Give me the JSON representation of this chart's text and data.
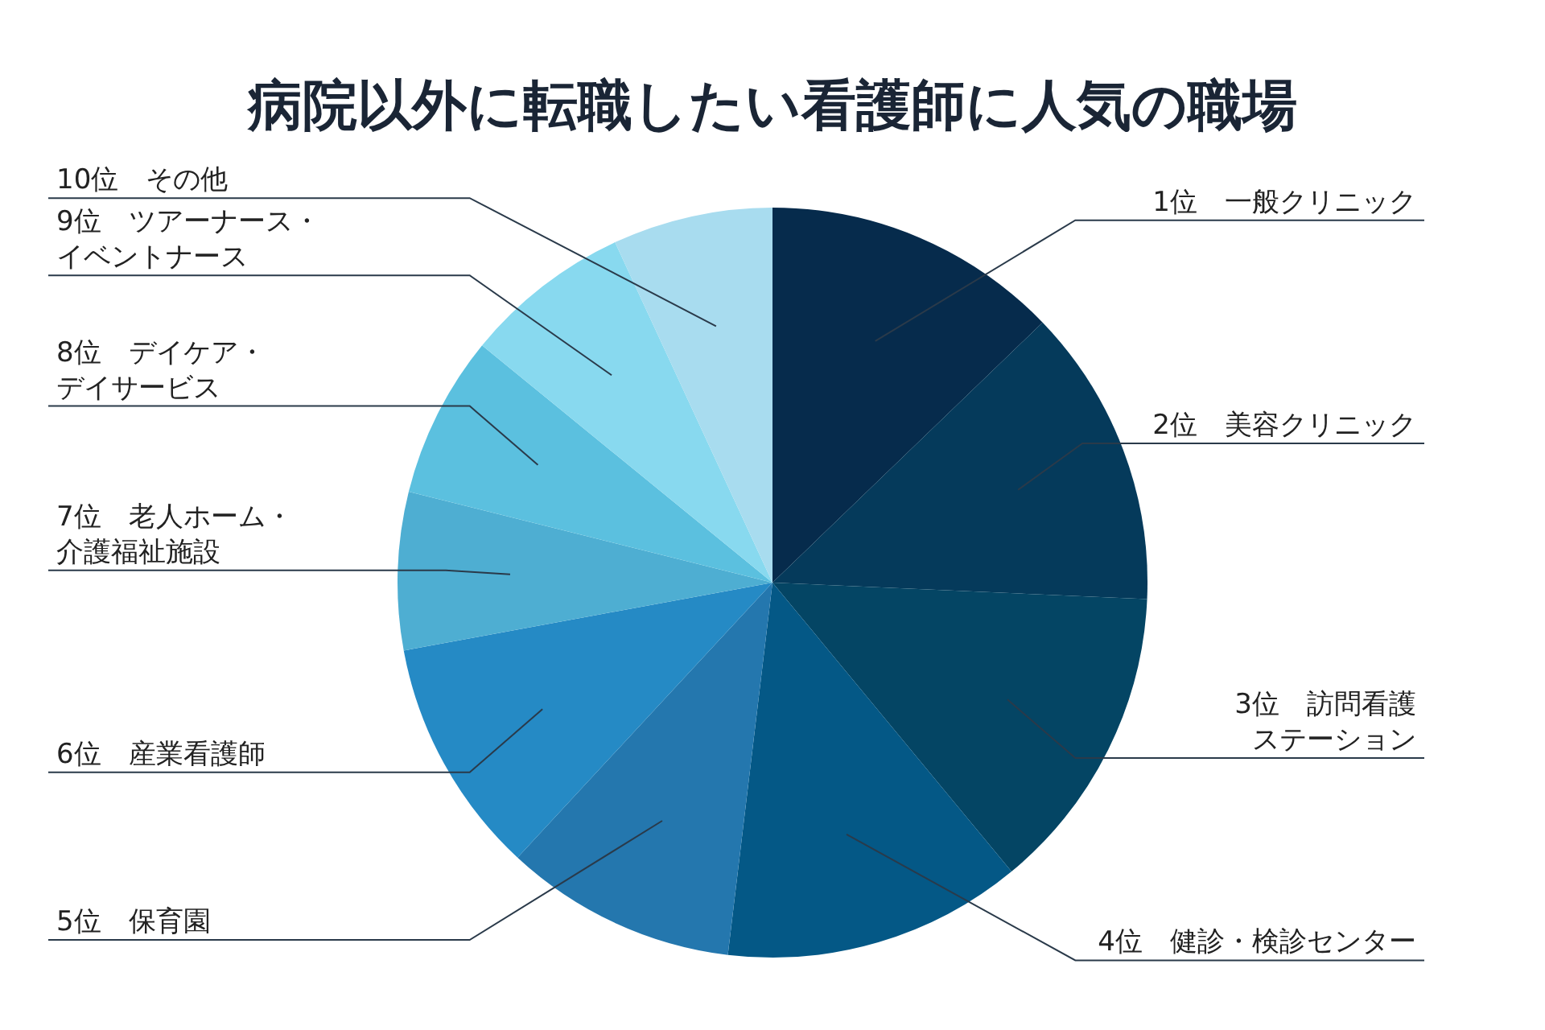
{
  "chart_data": {
    "type": "pie",
    "title": "病院以外に転職したい看護師に人気の職場",
    "categories": [
      "1位　一般クリニック",
      "2位　美容クリニック",
      "3位　訪問看護ステーション",
      "4位　健診・検診センター",
      "5位　保育園",
      "6位　産業看護師",
      "7位　老人ホーム・介護福祉施設",
      "8位　デイケア・デイサービス",
      "9位　ツアーナース・イベントナース",
      "10位　その他"
    ],
    "values": [
      12.8,
      12.9,
      13.3,
      12.9,
      10.0,
      10.2,
      6.8,
      7.0,
      7.2,
      6.9
    ],
    "colors": [
      "#062b4c",
      "#053a5b",
      "#044564",
      "#045886",
      "#2477ae",
      "#258ac5",
      "#4eaed2",
      "#5bc0df",
      "#88d9ef",
      "#a8dcef"
    ],
    "legend": false
  }
}
